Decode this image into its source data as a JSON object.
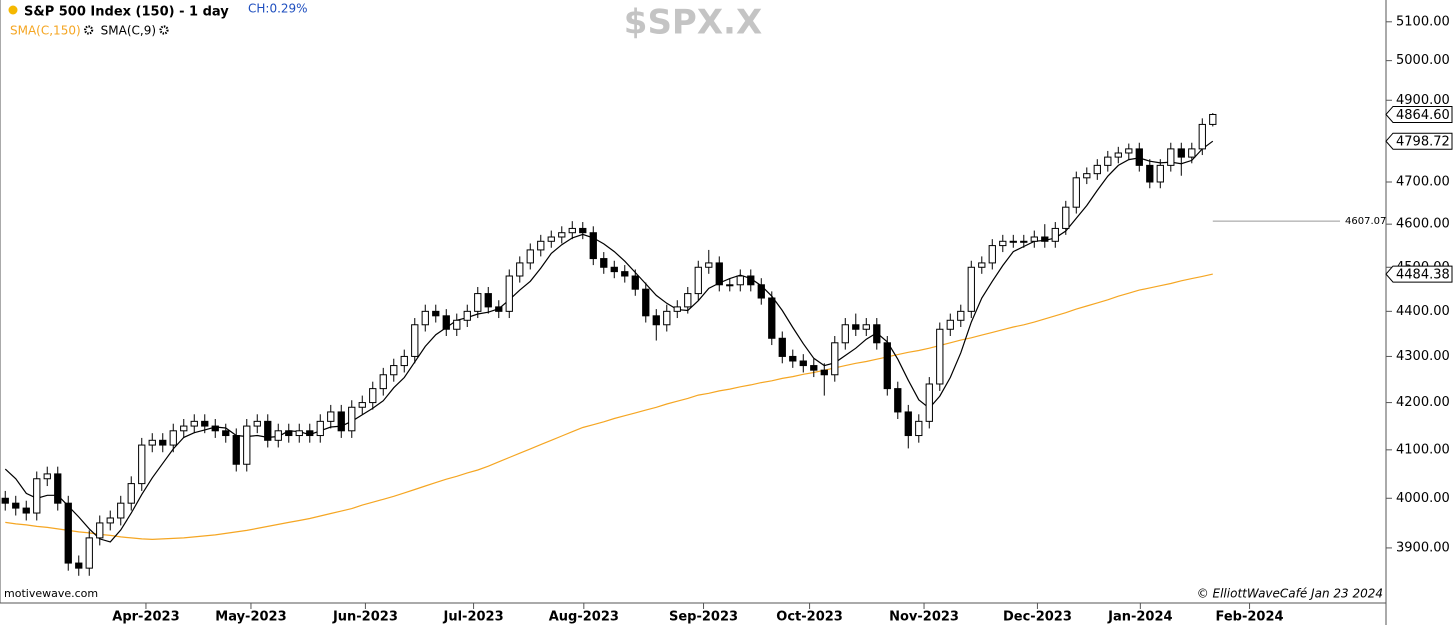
{
  "chart_data": {
    "type": "candlestick",
    "title": "S&P 500 Index (150) - 1 day",
    "change": "CH:0.29%",
    "symbol": "$SPX.X",
    "source": "motivewave.com",
    "credit": "© ElliottWaveCafé Jan 23 2024",
    "log_scale": true,
    "up_color": "#ffffff",
    "down_color": "#000000",
    "open": [
      4000,
      3990,
      3980,
      3970,
      4040,
      4050,
      3990,
      3870,
      3860,
      3920,
      3950,
      3960,
      3990,
      4030,
      4110,
      4120,
      4110,
      4140,
      4150,
      4160,
      4150,
      4140,
      4130,
      4070,
      4150,
      4160,
      4120,
      4140,
      4130,
      4140,
      4130,
      4160,
      4180,
      4140,
      4190,
      4200,
      4230,
      4260,
      4280,
      4300,
      4370,
      4400,
      4390,
      4360,
      4380,
      4400,
      4440,
      4410,
      4400,
      4480,
      4510,
      4540,
      4560,
      4570,
      4580,
      4590,
      4580,
      4520,
      4500,
      4490,
      4480,
      4450,
      4390,
      4370,
      4400,
      4410,
      4440,
      4500,
      4510,
      4460,
      4460,
      4480,
      4460,
      4430,
      4340,
      4300,
      4290,
      4280,
      4270,
      4260,
      4330,
      4370,
      4360,
      4370,
      4330,
      4230,
      4180,
      4130,
      4160,
      4240,
      4360,
      4380,
      4400,
      4500,
      4510,
      4550,
      4560,
      4560,
      4560,
      4570,
      4560,
      4590,
      4640,
      4710,
      4720,
      4740,
      4760,
      4770,
      4780,
      4740,
      4700,
      4740,
      4780,
      4760,
      4780,
      4840
    ],
    "high": [
      4015,
      4005,
      3995,
      4055,
      4065,
      4065,
      4005,
      3885,
      3935,
      3965,
      3975,
      4005,
      4045,
      4125,
      4135,
      4135,
      4155,
      4165,
      4175,
      4175,
      4165,
      4155,
      4145,
      4165,
      4175,
      4175,
      4155,
      4155,
      4155,
      4155,
      4175,
      4195,
      4195,
      4205,
      4215,
      4245,
      4275,
      4295,
      4315,
      4385,
      4415,
      4415,
      4405,
      4395,
      4415,
      4455,
      4455,
      4425,
      4495,
      4525,
      4555,
      4575,
      4585,
      4595,
      4607.07,
      4605,
      4595,
      4535,
      4515,
      4505,
      4495,
      4465,
      4405,
      4415,
      4425,
      4455,
      4515,
      4540,
      4525,
      4475,
      4495,
      4495,
      4475,
      4445,
      4355,
      4315,
      4305,
      4295,
      4285,
      4345,
      4385,
      4395,
      4385,
      4385,
      4345,
      4245,
      4195,
      4175,
      4255,
      4375,
      4395,
      4415,
      4515,
      4525,
      4565,
      4575,
      4575,
      4575,
      4585,
      4600,
      4605,
      4655,
      4725,
      4735,
      4755,
      4775,
      4785,
      4793,
      4795,
      4755,
      4755,
      4795,
      4795,
      4795,
      4855,
      4868
    ],
    "low": [
      3975,
      3965,
      3955,
      3955,
      4025,
      3975,
      3855,
      3845,
      3845,
      3905,
      3935,
      3945,
      3975,
      4015,
      4095,
      4095,
      4095,
      4125,
      4135,
      4135,
      4125,
      4115,
      4055,
      4055,
      4135,
      4105,
      4105,
      4115,
      4115,
      4115,
      4115,
      4145,
      4125,
      4125,
      4175,
      4185,
      4215,
      4245,
      4265,
      4285,
      4355,
      4375,
      4345,
      4345,
      4365,
      4385,
      4395,
      4385,
      4385,
      4465,
      4495,
      4525,
      4545,
      4555,
      4565,
      4565,
      4505,
      4485,
      4475,
      4465,
      4435,
      4375,
      4335,
      4355,
      4385,
      4395,
      4425,
      4485,
      4445,
      4445,
      4445,
      4445,
      4415,
      4325,
      4285,
      4275,
      4265,
      4255,
      4215,
      4245,
      4315,
      4345,
      4345,
      4315,
      4215,
      4165,
      4103,
      4115,
      4145,
      4225,
      4345,
      4365,
      4385,
      4485,
      4495,
      4535,
      4545,
      4545,
      4545,
      4545,
      4545,
      4575,
      4625,
      4695,
      4705,
      4725,
      4745,
      4755,
      4725,
      4685,
      4685,
      4725,
      4715,
      4745,
      4765,
      4835
    ],
    "close": [
      3990,
      3980,
      3970,
      4040,
      4050,
      3990,
      3870,
      3860,
      3920,
      3950,
      3960,
      3990,
      4030,
      4110,
      4120,
      4110,
      4140,
      4150,
      4160,
      4150,
      4140,
      4130,
      4070,
      4150,
      4160,
      4120,
      4140,
      4130,
      4140,
      4130,
      4160,
      4180,
      4140,
      4190,
      4200,
      4230,
      4260,
      4280,
      4300,
      4370,
      4400,
      4390,
      4360,
      4380,
      4400,
      4440,
      4410,
      4400,
      4480,
      4510,
      4540,
      4560,
      4570,
      4580,
      4590,
      4580,
      4520,
      4500,
      4490,
      4480,
      4450,
      4390,
      4370,
      4400,
      4410,
      4440,
      4500,
      4510,
      4460,
      4460,
      4480,
      4460,
      4430,
      4340,
      4300,
      4290,
      4280,
      4270,
      4260,
      4330,
      4370,
      4360,
      4370,
      4330,
      4230,
      4180,
      4130,
      4160,
      4240,
      4360,
      4380,
      4400,
      4500,
      4510,
      4550,
      4560,
      4560,
      4560,
      4570,
      4560,
      4590,
      4640,
      4710,
      4720,
      4740,
      4760,
      4770,
      4780,
      4740,
      4700,
      4740,
      4780,
      4760,
      4780,
      4840,
      4864.6
    ],
    "overlays": [
      {
        "name": "SMA(C,150)",
        "color": "#f5a623",
        "values": [
          3951,
          3948,
          3946,
          3943,
          3941,
          3938,
          3935,
          3932,
          3930,
          3927,
          3925,
          3922,
          3920,
          3918,
          3917,
          3918,
          3919,
          3920,
          3922,
          3924,
          3926,
          3929,
          3932,
          3935,
          3939,
          3943,
          3947,
          3951,
          3955,
          3959,
          3964,
          3969,
          3974,
          3979,
          3986,
          3992,
          3998,
          4004,
          4011,
          4018,
          4025,
          4032,
          4039,
          4045,
          4052,
          4058,
          4066,
          4075,
          4084,
          4093,
          4102,
          4111,
          4120,
          4129,
          4138,
          4147,
          4153,
          4159,
          4166,
          4172,
          4178,
          4184,
          4190,
          4197,
          4203,
          4209,
          4216,
          4220,
          4225,
          4229,
          4234,
          4238,
          4243,
          4247,
          4252,
          4256,
          4261,
          4265,
          4270,
          4275,
          4280,
          4285,
          4289,
          4294,
          4299,
          4304,
          4309,
          4313,
          4318,
          4324,
          4330,
          4336,
          4341,
          4347,
          4353,
          4359,
          4365,
          4370,
          4376,
          4383,
          4390,
          4397,
          4405,
          4412,
          4419,
          4426,
          4434,
          4441,
          4448,
          4453,
          4458,
          4463,
          4469,
          4474,
          4479,
          4484.38
        ]
      },
      {
        "name": "SMA(C,9)",
        "color": "#000000",
        "values": [
          4060,
          4040,
          4010,
          4000,
          4006,
          4006,
          3984,
          3962,
          3938,
          3918,
          3912,
          3936,
          3970,
          4008,
          4042,
          4072,
          4102,
          4126,
          4136,
          4142,
          4148,
          4146,
          4130,
          4128,
          4130,
          4126,
          4128,
          4140,
          4138,
          4132,
          4140,
          4148,
          4150,
          4160,
          4174,
          4188,
          4204,
          4232,
          4254,
          4288,
          4322,
          4348,
          4364,
          4380,
          4386,
          4394,
          4398,
          4406,
          4426,
          4448,
          4468,
          4498,
          4532,
          4552,
          4568,
          4576,
          4568,
          4554,
          4536,
          4514,
          4488,
          4462,
          4436,
          4418,
          4404,
          4402,
          4424,
          4452,
          4464,
          4474,
          4482,
          4474,
          4458,
          4434,
          4402,
          4364,
          4328,
          4296,
          4280,
          4286,
          4302,
          4318,
          4338,
          4352,
          4332,
          4294,
          4248,
          4206,
          4188,
          4214,
          4254,
          4308,
          4376,
          4430,
          4468,
          4504,
          4536,
          4548,
          4560,
          4562,
          4568,
          4584,
          4614,
          4644,
          4680,
          4714,
          4740,
          4754,
          4758,
          4750,
          4746,
          4748,
          4744,
          4752,
          4780,
          4798.72
        ]
      }
    ],
    "hline": 4607.07,
    "price_tags": [
      {
        "value": 4864.6,
        "label": "4864.60"
      },
      4798.72,
      4484.38
    ],
    "ylim": [
      3792,
      5157
    ],
    "yticks": [
      {
        "value": 3900,
        "label": "3900.00"
      },
      {
        "value": 4000,
        "label": "4000.00"
      },
      {
        "value": 4100,
        "label": "4100.00"
      },
      {
        "value": 4200,
        "label": "4200.00"
      },
      {
        "value": 4300,
        "label": "4300.00"
      },
      {
        "value": 4400,
        "label": "4400.00"
      },
      {
        "value": 4500,
        "label": "4500.00"
      },
      {
        "value": 4600,
        "label": "4600.00"
      },
      {
        "value": 4700,
        "label": "4700.00"
      },
      {
        "value": 4800,
        "label": "4800.00"
      },
      {
        "value": 4900,
        "label": "4900.00"
      },
      {
        "value": 5000,
        "label": "5000.00"
      },
      {
        "value": 5100,
        "label": "5100.00"
      }
    ],
    "xlim": [
      -0.5,
      131.4
    ],
    "xticks": [
      {
        "value": 13.4,
        "label": "Apr-2023"
      },
      {
        "value": 23.4,
        "label": "May-2023"
      },
      {
        "value": 34.3,
        "label": "Jun-2023"
      },
      {
        "value": 44.6,
        "label": "Jul-2023"
      },
      {
        "value": 55.1,
        "label": "Aug-2023"
      },
      {
        "value": 66.5,
        "label": "Sep-2023"
      },
      {
        "value": 76.6,
        "label": "Oct-2023"
      },
      {
        "value": 87.5,
        "label": "Nov-2023"
      },
      {
        "value": 98.3,
        "label": "Dec-2023"
      },
      {
        "value": 108.1,
        "label": "Jan-2024"
      },
      {
        "value": 118.5,
        "label": "Feb-2024"
      }
    ]
  }
}
